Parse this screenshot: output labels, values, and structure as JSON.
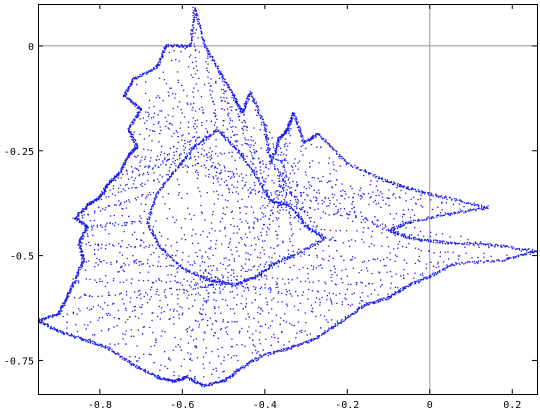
{
  "chart_data": {
    "type": "scatter",
    "title": "",
    "xlabel": "",
    "ylabel": "",
    "xlim": [
      -0.95,
      0.26
    ],
    "ylim": [
      -0.83,
      0.1
    ],
    "grid": false,
    "legend": "none",
    "x_ticks": [
      -0.8,
      -0.6,
      -0.4,
      -0.2,
      0,
      0.2
    ],
    "x_tick_labels": [
      "-0.8",
      "-0.6",
      "-0.4",
      "-0.2",
      "0",
      "0.2"
    ],
    "y_ticks": [
      0,
      -0.25,
      -0.5,
      -0.75
    ],
    "y_tick_labels": [
      "0",
      "-0.25",
      "-0.5",
      "-0.75"
    ],
    "reference_lines": {
      "x": 0,
      "y": 0
    },
    "colors": {
      "points": "#1a1aee",
      "axis_lines": "#999999",
      "frame": "#000000"
    },
    "series": [
      {
        "color": "#1a1aee",
        "boundary": [
          [
            -0.57,
            0.09
          ],
          [
            -0.545,
            0.0
          ],
          [
            -0.51,
            -0.06
          ],
          [
            -0.475,
            -0.12
          ],
          [
            -0.455,
            -0.16
          ],
          [
            -0.435,
            -0.11
          ],
          [
            -0.4,
            -0.19
          ],
          [
            -0.385,
            -0.28
          ],
          [
            -0.365,
            -0.22
          ],
          [
            -0.345,
            -0.2
          ],
          [
            -0.33,
            -0.16
          ],
          [
            -0.305,
            -0.23
          ],
          [
            -0.27,
            -0.21
          ],
          [
            -0.2,
            -0.28
          ],
          [
            -0.11,
            -0.32
          ],
          [
            -0.05,
            -0.34
          ],
          [
            0.03,
            -0.36
          ],
          [
            0.14,
            -0.385
          ],
          [
            0.05,
            -0.4
          ],
          [
            -0.05,
            -0.42
          ],
          [
            -0.1,
            -0.44
          ],
          [
            -0.04,
            -0.46
          ],
          [
            0.05,
            -0.47
          ],
          [
            0.16,
            -0.475
          ],
          [
            0.26,
            -0.49
          ],
          [
            0.18,
            -0.51
          ],
          [
            0.06,
            -0.52
          ],
          [
            0.0,
            -0.55
          ],
          [
            -0.06,
            -0.575
          ],
          [
            -0.1,
            -0.6
          ],
          [
            -0.16,
            -0.62
          ],
          [
            -0.22,
            -0.66
          ],
          [
            -0.28,
            -0.7
          ],
          [
            -0.34,
            -0.72
          ],
          [
            -0.41,
            -0.74
          ],
          [
            -0.46,
            -0.77
          ],
          [
            -0.5,
            -0.8
          ],
          [
            -0.55,
            -0.81
          ],
          [
            -0.59,
            -0.79
          ],
          [
            -0.62,
            -0.8
          ],
          [
            -0.66,
            -0.79
          ],
          [
            -0.72,
            -0.76
          ],
          [
            -0.78,
            -0.72
          ],
          [
            -0.84,
            -0.7
          ],
          [
            -0.9,
            -0.68
          ],
          [
            -0.95,
            -0.655
          ],
          [
            -0.9,
            -0.64
          ],
          [
            -0.88,
            -0.6
          ],
          [
            -0.86,
            -0.56
          ],
          [
            -0.84,
            -0.51
          ],
          [
            -0.85,
            -0.47
          ],
          [
            -0.83,
            -0.43
          ],
          [
            -0.86,
            -0.41
          ],
          [
            -0.83,
            -0.38
          ],
          [
            -0.8,
            -0.36
          ],
          [
            -0.78,
            -0.33
          ],
          [
            -0.75,
            -0.3
          ],
          [
            -0.73,
            -0.26
          ],
          [
            -0.71,
            -0.24
          ],
          [
            -0.73,
            -0.2
          ],
          [
            -0.7,
            -0.15
          ],
          [
            -0.74,
            -0.12
          ],
          [
            -0.72,
            -0.08
          ],
          [
            -0.66,
            -0.05
          ],
          [
            -0.64,
            0.0
          ],
          [
            -0.58,
            0.0
          ],
          [
            -0.57,
            0.09
          ]
        ],
        "hole": [
          [
            -0.57,
            -0.24
          ],
          [
            -0.515,
            -0.2
          ],
          [
            -0.465,
            -0.25
          ],
          [
            -0.42,
            -0.31
          ],
          [
            -0.385,
            -0.37
          ],
          [
            -0.34,
            -0.38
          ],
          [
            -0.3,
            -0.43
          ],
          [
            -0.255,
            -0.46
          ],
          [
            -0.33,
            -0.5
          ],
          [
            -0.38,
            -0.52
          ],
          [
            -0.42,
            -0.55
          ],
          [
            -0.47,
            -0.57
          ],
          [
            -0.53,
            -0.56
          ],
          [
            -0.6,
            -0.53
          ],
          [
            -0.655,
            -0.48
          ],
          [
            -0.685,
            -0.42
          ],
          [
            -0.66,
            -0.35
          ],
          [
            -0.62,
            -0.3
          ],
          [
            -0.57,
            -0.24
          ]
        ]
      }
    ]
  }
}
